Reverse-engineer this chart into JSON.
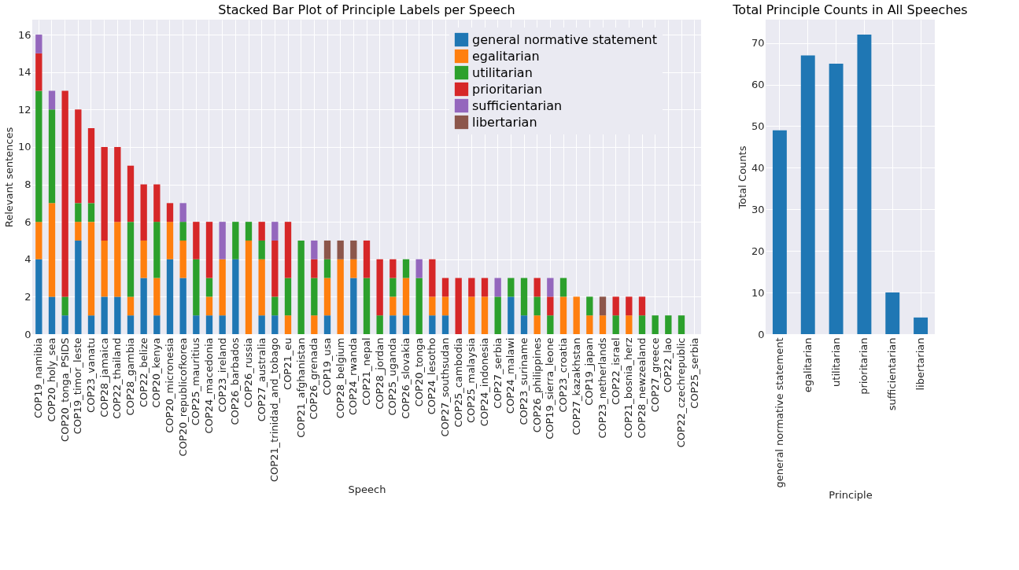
{
  "chart_data": [
    {
      "type": "bar",
      "title": "Stacked Bar Plot of Principle Labels per Speech",
      "xlabel": "Speech",
      "ylabel": "Relevant sentences",
      "categories": [
        "COP19_namibia",
        "COP20_holy_sea",
        "COP20_tonga_PSIDS",
        "COP19_timor_leste",
        "COP23_vanatu",
        "COP28_jamaica",
        "COP22_thailand",
        "COP28_gambia",
        "COP22_belize",
        "COP20_kenya",
        "COP20_micronesia",
        "COP20_republicofkorea",
        "COP25_mauritius",
        "COP24_macedonia",
        "COP23_ireland",
        "COP26_barbados",
        "COP26_russia",
        "COP27_australia",
        "COP21_trinidad_and_tobago",
        "COP21_eu",
        "COP21_afghanistan",
        "COP26_grenada",
        "COP19_usa",
        "COP28_belgium",
        "COP24_rwanda",
        "COP21_nepal",
        "COP28_jordan",
        "COP25_uganda",
        "COP26_slovakia",
        "COP20_tonga",
        "COP24_lesotho",
        "COP27_southsudan",
        "COP25_cambodia",
        "COP25_malaysia",
        "COP24_indonesia",
        "COP27_serbia",
        "COP24_malawi",
        "COP23_suriname",
        "COP26_philippines",
        "COP19_sierra_leone",
        "COP23_croatia",
        "COP27_kazakhstan",
        "COP19_japan",
        "COP23_netherlands",
        "COP22_israel",
        "COP21_bosnia_herz",
        "COP28_newzealand",
        "COP27_greece",
        "COP22_lao",
        "COP22_czechrepublic",
        "COP25_serbia"
      ],
      "stacked": true,
      "series": [
        {
          "name": "general normative statement",
          "color": "#1f77b4",
          "values": [
            4,
            2,
            1,
            5,
            1,
            2,
            2,
            1,
            3,
            1,
            4,
            3,
            1,
            1,
            1,
            4,
            0,
            1,
            1,
            0,
            0,
            0,
            1,
            0,
            3,
            0,
            0,
            1,
            1,
            0,
            1,
            1,
            0,
            0,
            0,
            0,
            2,
            1,
            0,
            0,
            0,
            0,
            0,
            0,
            0,
            0,
            0,
            0,
            0,
            0,
            0
          ]
        },
        {
          "name": "egalitarian",
          "color": "#ff7f0e",
          "values": [
            2,
            5,
            0,
            1,
            5,
            3,
            4,
            1,
            2,
            2,
            2,
            2,
            0,
            1,
            3,
            0,
            5,
            3,
            0,
            1,
            0,
            1,
            2,
            4,
            1,
            0,
            0,
            1,
            2,
            0,
            1,
            1,
            0,
            2,
            2,
            0,
            0,
            0,
            1,
            0,
            2,
            2,
            1,
            1,
            0,
            1,
            0,
            0,
            0,
            0,
            0
          ]
        },
        {
          "name": "utilitarian",
          "color": "#2ca02c",
          "values": [
            7,
            5,
            1,
            1,
            1,
            0,
            0,
            4,
            0,
            3,
            0,
            1,
            3,
            1,
            0,
            2,
            1,
            1,
            1,
            2,
            5,
            2,
            1,
            0,
            0,
            3,
            1,
            1,
            1,
            3,
            0,
            0,
            0,
            0,
            0,
            2,
            1,
            2,
            1,
            1,
            1,
            0,
            1,
            0,
            1,
            0,
            1,
            1,
            1,
            1,
            0
          ]
        },
        {
          "name": "prioritarian",
          "color": "#d62728",
          "values": [
            2,
            0,
            11,
            5,
            4,
            5,
            4,
            3,
            3,
            2,
            1,
            0,
            2,
            3,
            0,
            0,
            0,
            1,
            3,
            3,
            0,
            1,
            0,
            0,
            0,
            2,
            3,
            1,
            0,
            0,
            2,
            1,
            3,
            1,
            1,
            0,
            0,
            0,
            1,
            1,
            0,
            0,
            0,
            0,
            1,
            1,
            1,
            0,
            0,
            0,
            0
          ]
        },
        {
          "name": "sufficientarian",
          "color": "#9467bd",
          "values": [
            1,
            1,
            0,
            0,
            0,
            0,
            0,
            0,
            0,
            0,
            0,
            1,
            0,
            0,
            2,
            0,
            0,
            0,
            1,
            0,
            0,
            1,
            0,
            0,
            0,
            0,
            0,
            0,
            0,
            1,
            0,
            0,
            0,
            0,
            0,
            1,
            0,
            0,
            0,
            1,
            0,
            0,
            0,
            0,
            0,
            0,
            0,
            0,
            0,
            0,
            0
          ]
        },
        {
          "name": "libertarian",
          "color": "#8c564b",
          "values": [
            0,
            0,
            0,
            0,
            0,
            0,
            0,
            0,
            0,
            0,
            0,
            0,
            0,
            0,
            0,
            0,
            0,
            0,
            0,
            0,
            0,
            0,
            1,
            1,
            1,
            0,
            0,
            0,
            0,
            0,
            0,
            0,
            0,
            0,
            0,
            0,
            0,
            0,
            0,
            0,
            0,
            0,
            0,
            1,
            0,
            0,
            0,
            0,
            0,
            0,
            0
          ]
        }
      ],
      "ylim": [
        0,
        16.8
      ],
      "yticks": [
        0,
        2,
        4,
        6,
        8,
        10,
        12,
        14,
        16
      ],
      "grid": true,
      "legend": "top right"
    },
    {
      "type": "bar",
      "title": "Total Principle Counts in All Speeches",
      "xlabel": "Principle",
      "ylabel": "Total Counts",
      "categories": [
        "general normative statement",
        "egalitarian",
        "utilitarian",
        "prioritarian",
        "sufficientarian",
        "libertarian"
      ],
      "values": [
        49,
        67,
        65,
        72,
        10,
        4
      ],
      "color": "#1f77b4",
      "ylim": [
        0,
        75.6
      ],
      "yticks": [
        0,
        10,
        20,
        30,
        40,
        50,
        60,
        70
      ],
      "grid": true
    }
  ]
}
